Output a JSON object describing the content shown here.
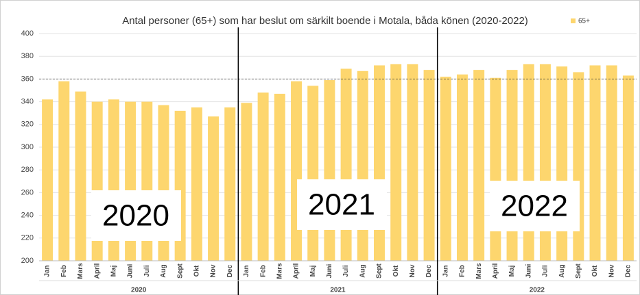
{
  "chart_data": {
    "type": "bar",
    "title": "Antal personer (65+) som har beslut om särkilt boende i Motala, båda könen (2020-2022)",
    "categories": [
      "Jan",
      "Feb",
      "Mars",
      "April",
      "Maj",
      "Juni",
      "Juli",
      "Aug",
      "Sept",
      "Okt",
      "Nov",
      "Dec",
      "Jan",
      "Feb",
      "Mars",
      "April",
      "Maj",
      "Juni",
      "Juli",
      "Aug",
      "Sept",
      "Okt",
      "Nov",
      "Dec",
      "Jan",
      "Feb",
      "Mars",
      "April",
      "Maj",
      "Juni",
      "Juli",
      "Aug",
      "Sept",
      "Okt",
      "Nov",
      "Dec"
    ],
    "groups": [
      "2020",
      "2021",
      "2022"
    ],
    "annotations": [
      "2020",
      "2021",
      "2022"
    ],
    "series": [
      {
        "name": "65+",
        "color": "#fdd66e",
        "values": [
          342,
          358,
          349,
          340,
          342,
          340,
          340,
          337,
          332,
          335,
          327,
          335,
          339,
          348,
          347,
          358,
          354,
          359,
          369,
          367,
          372,
          373,
          373,
          368,
          362,
          364,
          368,
          361,
          368,
          373,
          373,
          371,
          366,
          372,
          372,
          363
        ]
      }
    ],
    "reference_line": 360,
    "ylim": [
      200,
      400
    ],
    "yticks": [
      200,
      220,
      240,
      260,
      280,
      300,
      320,
      340,
      360,
      380,
      400
    ],
    "grid": true
  }
}
